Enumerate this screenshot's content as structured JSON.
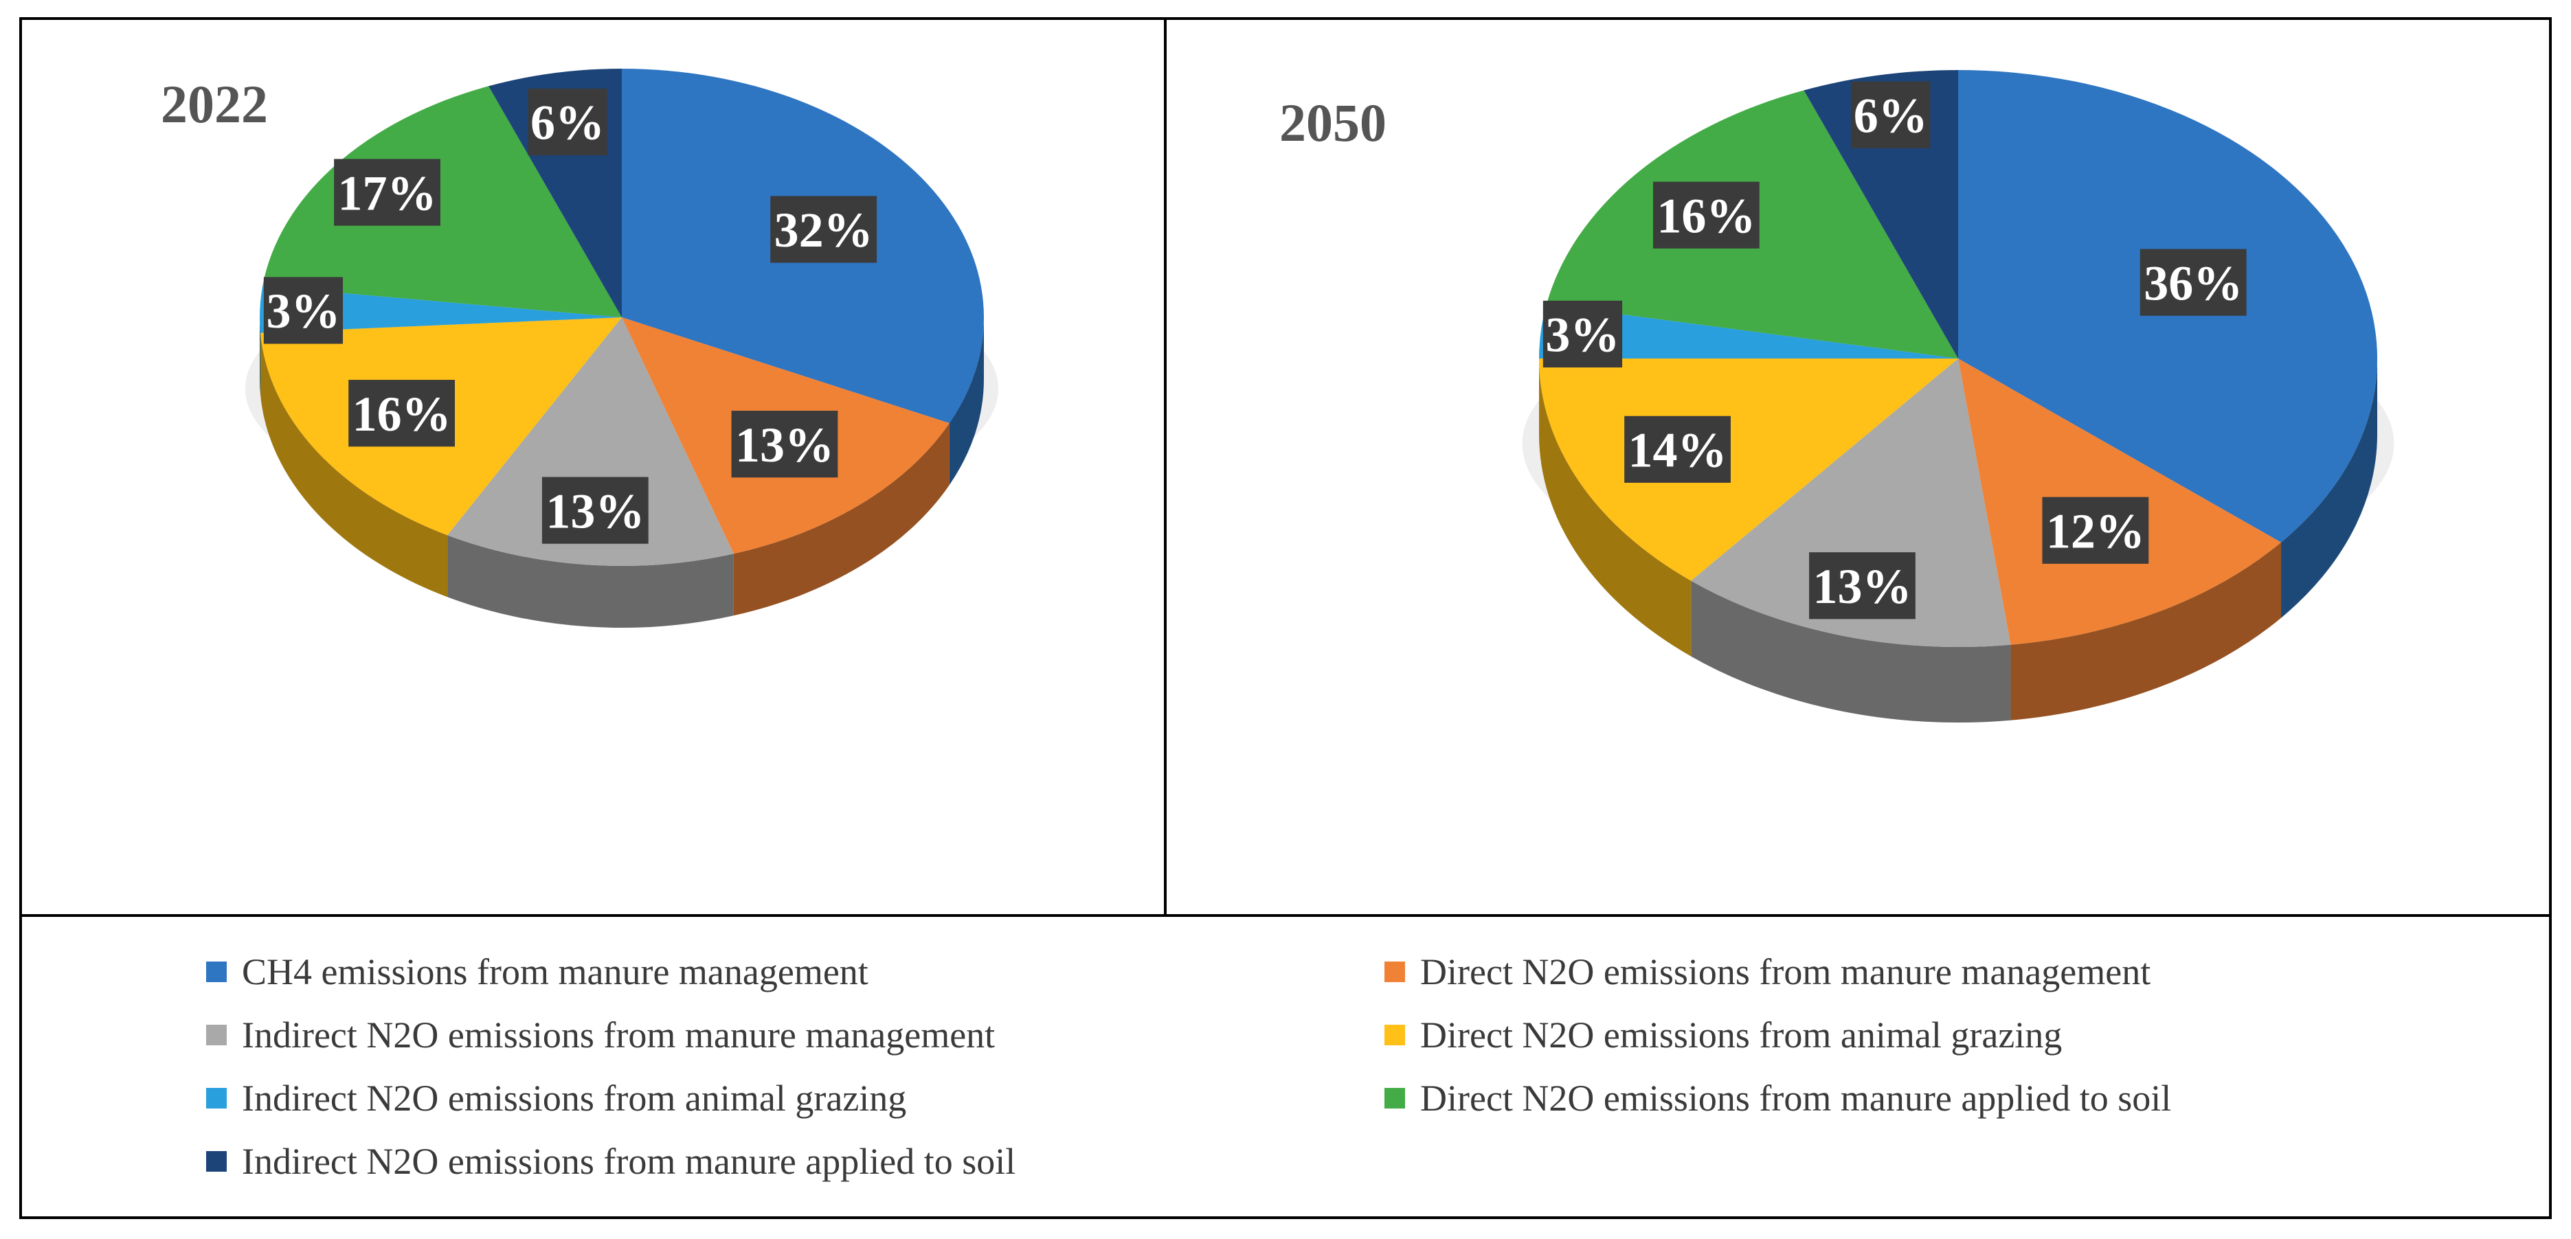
{
  "chart_data": [
    {
      "type": "pie",
      "title": "2022",
      "slices": [
        {
          "key": "ch4_mm",
          "label": "CH4 emissions from manure management",
          "value": 32,
          "display": "32%"
        },
        {
          "key": "dn2o_mm",
          "label": "Direct N2O emissions from manure management",
          "value": 13,
          "display": "13%"
        },
        {
          "key": "in2o_mm",
          "label": "Indirect N2O emissions from manure management",
          "value": 13,
          "display": "13%"
        },
        {
          "key": "dn2o_ag",
          "label": "Direct N2O emissions from animal grazing",
          "value": 16,
          "display": "16%"
        },
        {
          "key": "in2o_ag",
          "label": "Indirect N2O emissions from animal grazing",
          "value": 3,
          "display": "3%"
        },
        {
          "key": "dn2o_soil",
          "label": "Direct N2O emissions from  manure applied to soil",
          "value": 17,
          "display": "17%"
        },
        {
          "key": "in2o_soil",
          "label": "Indirect N2O emissions from manure applied to soil",
          "value": 6,
          "display": "6%"
        }
      ]
    },
    {
      "type": "pie",
      "title": "2050",
      "slices": [
        {
          "key": "ch4_mm",
          "label": "CH4 emissions from manure management",
          "value": 36,
          "display": "36%"
        },
        {
          "key": "dn2o_mm",
          "label": "Direct N2O emissions from manure management",
          "value": 12,
          "display": "12%"
        },
        {
          "key": "in2o_mm",
          "label": "Indirect N2O emissions from manure management",
          "value": 13,
          "display": "13%"
        },
        {
          "key": "dn2o_ag",
          "label": "Direct N2O emissions from animal grazing",
          "value": 14,
          "display": "14%"
        },
        {
          "key": "in2o_ag",
          "label": "Indirect N2O emissions from animal grazing",
          "value": 3,
          "display": "3%"
        },
        {
          "key": "dn2o_soil",
          "label": "Direct N2O emissions from  manure applied to soil",
          "value": 16,
          "display": "16%"
        },
        {
          "key": "in2o_soil",
          "label": "Indirect N2O emissions from manure applied to soil",
          "value": 6,
          "display": "6%"
        }
      ]
    }
  ],
  "legend": [
    {
      "key": "ch4_mm",
      "label": "CH4 emissions from manure management",
      "color": "#2e75c2"
    },
    {
      "key": "dn2o_mm",
      "label": "Direct N2O emissions from manure management",
      "color": "#f08236"
    },
    {
      "key": "in2o_mm",
      "label": "Indirect N2O emissions from manure management",
      "color": "#a9a9a9"
    },
    {
      "key": "dn2o_ag",
      "label": "Direct N2O emissions from animal grazing",
      "color": "#ffc018"
    },
    {
      "key": "in2o_ag",
      "label": "Indirect N2O emissions from animal grazing",
      "color": "#2a9fde"
    },
    {
      "key": "dn2o_soil",
      "label": "Direct N2O emissions from  manure applied to soil",
      "color": "#43ac46"
    },
    {
      "key": "in2o_soil",
      "label": "Indirect N2O emissions from manure applied to soil",
      "color": "#1d4478"
    }
  ]
}
